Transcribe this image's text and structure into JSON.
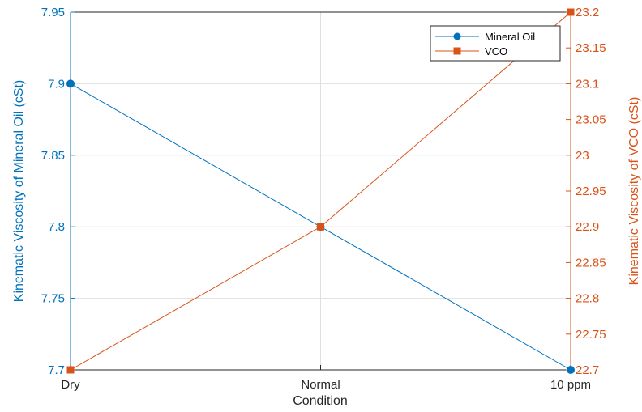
{
  "chart_data": {
    "type": "line",
    "categories": [
      "Dry",
      "Normal",
      "10 ppm"
    ],
    "xlabel": "Condition",
    "grid": true,
    "legend_position": "top-right",
    "y_left": {
      "label": "Kinematic Viscosity of Mineral Oil (cSt)",
      "range": [
        7.7,
        7.95
      ],
      "ticks": [
        "7.7",
        "7.75",
        "7.8",
        "7.85",
        "7.9",
        "7.95"
      ],
      "color": "#0072BD"
    },
    "y_right": {
      "label": "Kinematic Viscosity of VCO (cSt)",
      "range": [
        22.7,
        23.2
      ],
      "ticks": [
        "22.7",
        "22.75",
        "22.8",
        "22.85",
        "22.9",
        "22.95",
        "23",
        "23.05",
        "23.1",
        "23.15",
        "23.2"
      ],
      "color": "#D95319"
    },
    "series": [
      {
        "name": "Mineral Oil",
        "axis": "left",
        "marker": "circle",
        "color": "#0072BD",
        "values": [
          7.9,
          7.8,
          7.7
        ]
      },
      {
        "name": "VCO",
        "axis": "right",
        "marker": "square",
        "color": "#D95319",
        "values": [
          22.7,
          22.9,
          23.2
        ]
      }
    ]
  }
}
